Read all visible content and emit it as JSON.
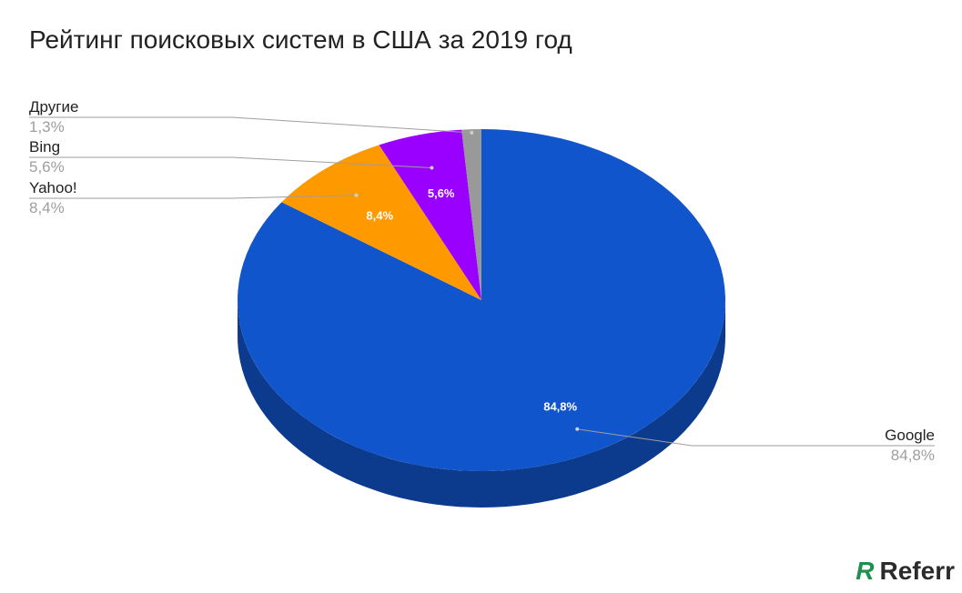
{
  "chart_data": {
    "type": "pie",
    "title": "Рейтинг поисковых систем в США за 2019 год",
    "slices": [
      {
        "name": "Google",
        "value": 84.8,
        "label": "84,8%",
        "color": "#1155cc",
        "side_color": "#0c3a8c"
      },
      {
        "name": "Yahoo!",
        "value": 8.4,
        "label": "8,4%",
        "color": "#ff9900",
        "side_color": "#b36b00"
      },
      {
        "name": "Bing",
        "value": 5.6,
        "label": "5,6%",
        "color": "#9900ff",
        "side_color": "#6b00b3"
      },
      {
        "name": "Другие",
        "value": 1.3,
        "label": "1,3%",
        "color": "#999999",
        "side_color": "#6b6b6b"
      }
    ]
  },
  "brand": {
    "mark": "R",
    "name": "Referr",
    "mark_color": "#1f8f4e"
  }
}
